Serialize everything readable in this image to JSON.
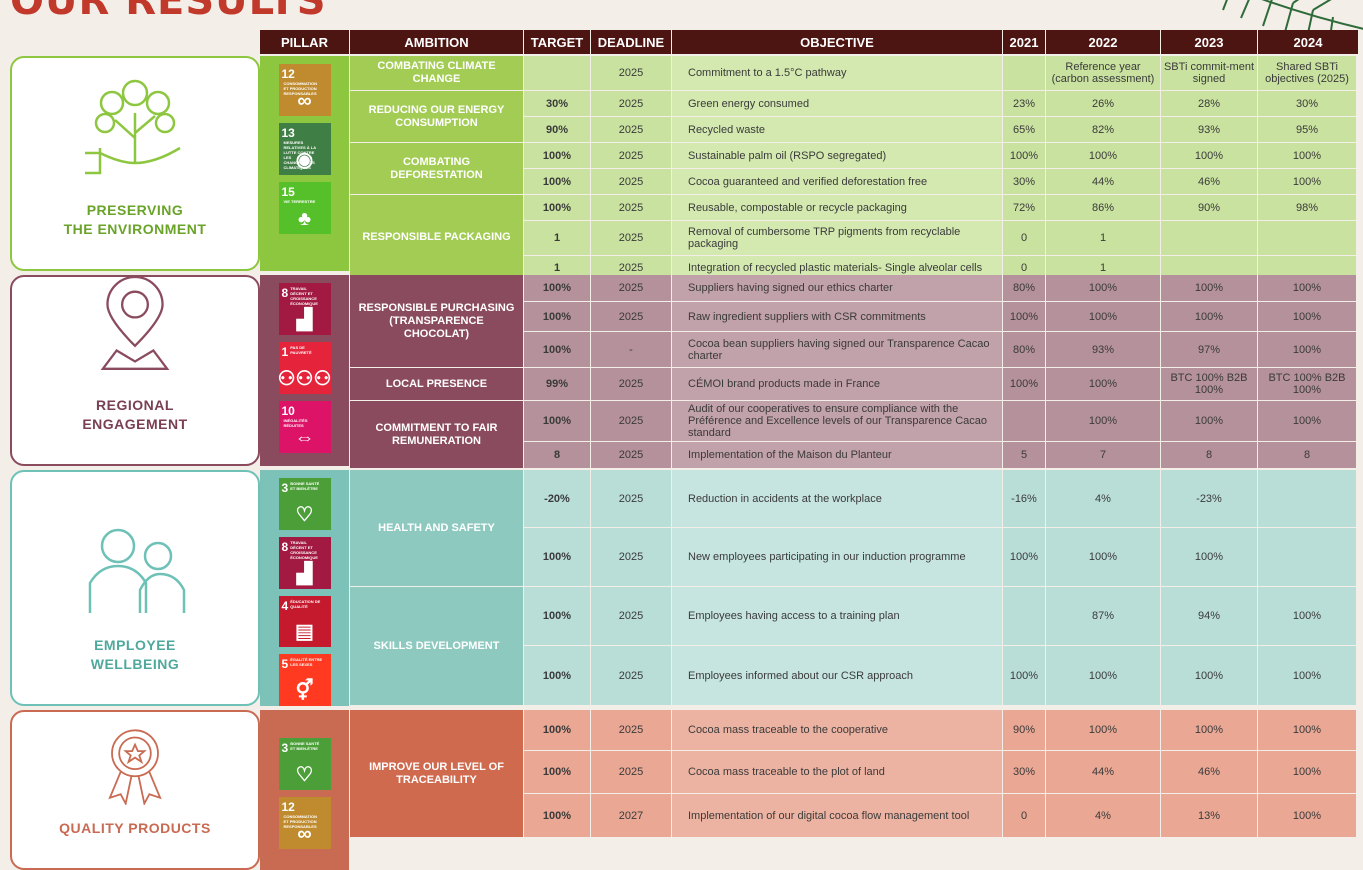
{
  "page_title": "OUR RESULTS",
  "headers": [
    "PILLAR",
    "AMBITION",
    "TARGET",
    "DEADLINE",
    "OBJECTIVE",
    "2021",
    "2022",
    "2023",
    "2024"
  ],
  "pillars": [
    {
      "label1": "PRESERVING",
      "label2": "THE ENVIRONMENT",
      "color": "#8dc63f"
    },
    {
      "label1": "REGIONAL",
      "label2": "ENGAGEMENT",
      "color": "#8a4b5e"
    },
    {
      "label1": "EMPLOYEE",
      "label2": "WELLBEING",
      "color": "#6ec1b6"
    },
    {
      "label1": "QUALITY PRODUCTS",
      "label2": "",
      "color": "#c96a52"
    }
  ],
  "sdgs": {
    "env": [
      {
        "num": "12",
        "text": "CONSOMMATION ET PRODUCTION RESPONSABLES",
        "icon": "∞",
        "color": "#bf8b2e"
      },
      {
        "num": "13",
        "text": "MESURES RELATIVES À LA LUTTE CONTRE LES CHANGEMENTS CLIMATIQUES",
        "icon": "◉",
        "color": "#3f7e44"
      },
      {
        "num": "15",
        "text": "VIE TERRESTRE",
        "icon": "♣",
        "color": "#56c02b"
      }
    ],
    "reg": [
      {
        "num": "8",
        "text": "TRAVAIL DÉCENT ET CROISSANCE ÉCONOMIQUE",
        "icon": "▟",
        "color": "#a21942"
      },
      {
        "num": "1",
        "text": "PAS DE PAUVRETÉ",
        "icon": "⚇⚇⚇",
        "color": "#e5243b"
      },
      {
        "num": "10",
        "text": "INÉGALITÉS RÉDUITES",
        "icon": "⇔",
        "color": "#dd1367"
      }
    ],
    "emp": [
      {
        "num": "3",
        "text": "BONNE SANTÉ ET BIEN-ÊTRE",
        "icon": "♡",
        "color": "#4c9f38"
      },
      {
        "num": "8",
        "text": "TRAVAIL DÉCENT ET CROISSANCE ÉCONOMIQUE",
        "icon": "▟",
        "color": "#a21942"
      },
      {
        "num": "4",
        "text": "ÉDUCATION DE QUALITÉ",
        "icon": "▤",
        "color": "#c5192d"
      },
      {
        "num": "5",
        "text": "ÉGALITÉ ENTRE LES SEXES",
        "icon": "⚥",
        "color": "#ff3a21"
      }
    ],
    "qual": [
      {
        "num": "3",
        "text": "BONNE SANTÉ ET BIEN-ÊTRE",
        "icon": "♡",
        "color": "#4c9f38"
      },
      {
        "num": "12",
        "text": "CONSOMMATION ET PRODUCTION RESPONSABLES",
        "icon": "∞",
        "color": "#bf8b2e"
      }
    ]
  },
  "env": {
    "ambitions": [
      "COMBATING CLIMATE CHANGE",
      "REDUCING OUR ENERGY CONSUMPTION",
      "COMBATING DEFORESTATION",
      "RESPONSIBLE PACKAGING"
    ],
    "rows": [
      [
        "",
        "2025",
        "Commitment to a 1.5°C pathway",
        "",
        "Reference year (carbon assessment)",
        "SBTi commit-ment signed",
        "Shared SBTi objectives (2025)"
      ],
      [
        "30%",
        "2025",
        "Green energy consumed",
        "23%",
        "26%",
        "28%",
        "30%"
      ],
      [
        "90%",
        "2025",
        "Recycled waste",
        "65%",
        "82%",
        "93%",
        "95%"
      ],
      [
        "100%",
        "2025",
        "Sustainable palm oil (RSPO segregated)",
        "100%",
        "100%",
        "100%",
        "100%"
      ],
      [
        "100%",
        "2025",
        "Cocoa guaranteed and verified deforestation free",
        "30%",
        "44%",
        "46%",
        "100%"
      ],
      [
        "100%",
        "2025",
        "Reusable, compostable or recycle packaging",
        "72%",
        "86%",
        "90%",
        "98%"
      ],
      [
        "1",
        "2025",
        "Removal of cumbersome TRP pigments from recyclable packaging",
        "0",
        "1",
        "",
        ""
      ],
      [
        "1",
        "2025",
        "Integration of recycled plastic materials- Single alveolar cells",
        "0",
        "1",
        "",
        ""
      ]
    ]
  },
  "reg": {
    "ambitions": [
      "RESPONSIBLE PURCHASING (TRANSPARENCE CHOCOLAT)",
      "LOCAL PRESENCE",
      "COMMITMENT TO FAIR REMUNERATION"
    ],
    "rows": [
      [
        "100%",
        "2025",
        "Suppliers having signed our ethics charter",
        "80%",
        "100%",
        "100%",
        "100%"
      ],
      [
        "100%",
        "2025",
        "Raw ingredient suppliers with CSR commitments",
        "100%",
        "100%",
        "100%",
        "100%"
      ],
      [
        "100%",
        "-",
        "Cocoa bean suppliers having signed our Transparence Cacao charter",
        "80%",
        "93%",
        "97%",
        "100%"
      ],
      [
        "99%",
        "2025",
        "CÉMOI brand products made in France",
        "100%",
        "100%",
        "BTC 100% B2B 100%",
        "BTC 100% B2B 100%"
      ],
      [
        "100%",
        "2025",
        "Audit of our cooperatives to ensure compliance with the Préférence and Excellence levels of our Transparence Cacao standard",
        "",
        "100%",
        "100%",
        "100%"
      ],
      [
        "8",
        "2025",
        "Implementation of the Maison du Planteur",
        "5",
        "7",
        "8",
        "8"
      ]
    ]
  },
  "emp": {
    "ambitions": [
      "HEALTH AND SAFETY",
      "SKILLS DEVELOPMENT"
    ],
    "rows": [
      [
        "-20%",
        "2025",
        "Reduction in accidents at the workplace",
        "-16%",
        "4%",
        "-23%",
        ""
      ],
      [
        "100%",
        "2025",
        "New employees participating in our induction programme",
        "100%",
        "100%",
        "100%",
        ""
      ],
      [
        "100%",
        "2025",
        "Employees having access to a training plan",
        "",
        "87%",
        "94%",
        "100%"
      ],
      [
        "100%",
        "2025",
        "Employees informed about our CSR approach",
        "100%",
        "100%",
        "100%",
        "100%"
      ]
    ]
  },
  "qual": {
    "ambitions": [
      "IMPROVE OUR LEVEL OF TRACEABILITY"
    ],
    "rows": [
      [
        "100%",
        "2025",
        "Cocoa mass traceable to the cooperative",
        "90%",
        "100%",
        "100%",
        "100%"
      ],
      [
        "100%",
        "2025",
        "Cocoa mass traceable to the plot of land",
        "30%",
        "44%",
        "46%",
        "100%"
      ],
      [
        "100%",
        "2027",
        "Implementation of our digital cocoa flow management tool",
        "0",
        "4%",
        "13%",
        "100%"
      ]
    ]
  }
}
